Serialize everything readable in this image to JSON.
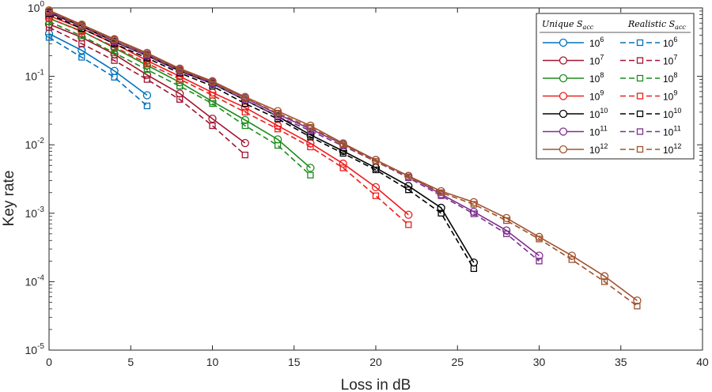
{
  "chart_data": {
    "type": "line",
    "title": "",
    "xlabel": "Loss in dB",
    "ylabel": "Key rate",
    "xlim": [
      0,
      40
    ],
    "ylim_log10": [
      -5,
      0
    ],
    "yscale": "log",
    "x_ticks": [
      "0",
      "5",
      "10",
      "15",
      "20",
      "25",
      "30",
      "35",
      "40"
    ],
    "y_ticks": [
      {
        "base": "10",
        "exp": "0"
      },
      {
        "base": "10",
        "exp": "-1"
      },
      {
        "base": "10",
        "exp": "-2"
      },
      {
        "base": "10",
        "exp": "-3"
      },
      {
        "base": "10",
        "exp": "-4"
      },
      {
        "base": "10",
        "exp": "-5"
      }
    ],
    "grid": false,
    "legend_position": "top-right",
    "legend": {
      "col1_title": "Unique S",
      "col1_sub": "acc",
      "col2_title": "Realistic S",
      "col2_sub": "acc"
    },
    "series": [
      {
        "name": "10^6",
        "exp_label": "6",
        "color": "#0072bd",
        "unique_x": [
          0,
          2,
          4,
          6
        ],
        "unique_y": [
          0.42,
          0.24,
          0.12,
          0.053
        ],
        "realistic_x": [
          0,
          2,
          4,
          6
        ],
        "realistic_y": [
          0.37,
          0.19,
          0.097,
          0.037
        ]
      },
      {
        "name": "10^7",
        "exp_label": "7",
        "color": "#a2142f",
        "unique_x": [
          0,
          2,
          4,
          6,
          8,
          10,
          12
        ],
        "unique_y": [
          0.58,
          0.37,
          0.21,
          0.105,
          0.056,
          0.024,
          0.0106
        ],
        "realistic_x": [
          0,
          2,
          4,
          6,
          8,
          10,
          12
        ],
        "realistic_y": [
          0.52,
          0.3,
          0.17,
          0.09,
          0.046,
          0.019,
          0.0071
        ]
      },
      {
        "name": "10^8",
        "exp_label": "8",
        "color": "#1c8c1c",
        "unique_x": [
          0,
          2,
          4,
          6,
          8,
          10,
          12,
          14,
          16
        ],
        "unique_y": [
          0.7,
          0.46,
          0.26,
          0.145,
          0.082,
          0.043,
          0.023,
          0.012,
          0.0046
        ],
        "realistic_x": [
          0,
          2,
          4,
          6,
          8,
          10,
          12,
          14,
          16
        ],
        "realistic_y": [
          0.63,
          0.39,
          0.22,
          0.125,
          0.072,
          0.04,
          0.019,
          0.0098,
          0.0036
        ]
      },
      {
        "name": "10^9",
        "exp_label": "9",
        "color": "#ee1c1c",
        "unique_x": [
          0,
          2,
          4,
          6,
          8,
          10,
          12,
          14,
          16,
          18,
          20,
          22
        ],
        "unique_y": [
          0.77,
          0.5,
          0.3,
          0.17,
          0.1,
          0.058,
          0.035,
          0.019,
          0.0105,
          0.0053,
          0.0024,
          0.00095
        ],
        "realistic_x": [
          0,
          2,
          4,
          6,
          8,
          10,
          12,
          14,
          16,
          18,
          20,
          22
        ],
        "realistic_y": [
          0.71,
          0.45,
          0.27,
          0.155,
          0.091,
          0.053,
          0.03,
          0.017,
          0.0093,
          0.0046,
          0.0018,
          0.00068
        ]
      },
      {
        "name": "10^10",
        "exp_label": "10",
        "color": "#000000",
        "unique_x": [
          0,
          2,
          4,
          6,
          8,
          10,
          12,
          14,
          16,
          18,
          20,
          22,
          24,
          26
        ],
        "unique_y": [
          0.85,
          0.54,
          0.32,
          0.2,
          0.12,
          0.078,
          0.045,
          0.026,
          0.014,
          0.0081,
          0.0046,
          0.0025,
          0.0012,
          0.00019
        ],
        "realistic_x": [
          0,
          2,
          4,
          6,
          8,
          10,
          12,
          14,
          16,
          18,
          20,
          22,
          24,
          26
        ],
        "realistic_y": [
          0.81,
          0.5,
          0.3,
          0.185,
          0.112,
          0.072,
          0.04,
          0.024,
          0.013,
          0.0075,
          0.0043,
          0.0022,
          0.001,
          0.000155
        ]
      },
      {
        "name": "10^11",
        "exp_label": "11",
        "color": "#7e2f8e",
        "unique_x": [
          0,
          2,
          4,
          6,
          8,
          10,
          12,
          14,
          16,
          18,
          20,
          22,
          24,
          26,
          28,
          30
        ],
        "unique_y": [
          0.88,
          0.56,
          0.34,
          0.21,
          0.125,
          0.082,
          0.048,
          0.028,
          0.017,
          0.0102,
          0.006,
          0.0035,
          0.0019,
          0.00105,
          0.00056,
          0.00024
        ],
        "realistic_x": [
          0,
          2,
          4,
          6,
          8,
          10,
          12,
          14,
          16,
          18,
          20,
          22,
          24,
          26,
          28,
          30
        ],
        "realistic_y": [
          0.84,
          0.53,
          0.32,
          0.2,
          0.118,
          0.078,
          0.045,
          0.026,
          0.016,
          0.0096,
          0.0057,
          0.0033,
          0.0018,
          0.00098,
          0.0005,
          0.0002
        ]
      },
      {
        "name": "10^12",
        "exp_label": "12",
        "color": "#a0522d",
        "unique_x": [
          0,
          2,
          4,
          6,
          8,
          10,
          12,
          14,
          16,
          18,
          20,
          22,
          24,
          26,
          28,
          30,
          32,
          34,
          36
        ],
        "unique_y": [
          0.92,
          0.57,
          0.35,
          0.22,
          0.13,
          0.085,
          0.05,
          0.031,
          0.019,
          0.0105,
          0.006,
          0.0035,
          0.0021,
          0.00145,
          0.00085,
          0.00045,
          0.00024,
          0.00012,
          5.3e-05
        ],
        "realistic_x": [
          0,
          2,
          4,
          6,
          8,
          10,
          12,
          14,
          16,
          18,
          20,
          22,
          24,
          26,
          28,
          30,
          32,
          34,
          36
        ],
        "realistic_y": [
          0.89,
          0.55,
          0.34,
          0.21,
          0.124,
          0.082,
          0.048,
          0.029,
          0.018,
          0.01,
          0.0057,
          0.0034,
          0.002,
          0.00135,
          0.00078,
          0.00042,
          0.00021,
          0.0001,
          4.4e-05
        ]
      }
    ]
  }
}
